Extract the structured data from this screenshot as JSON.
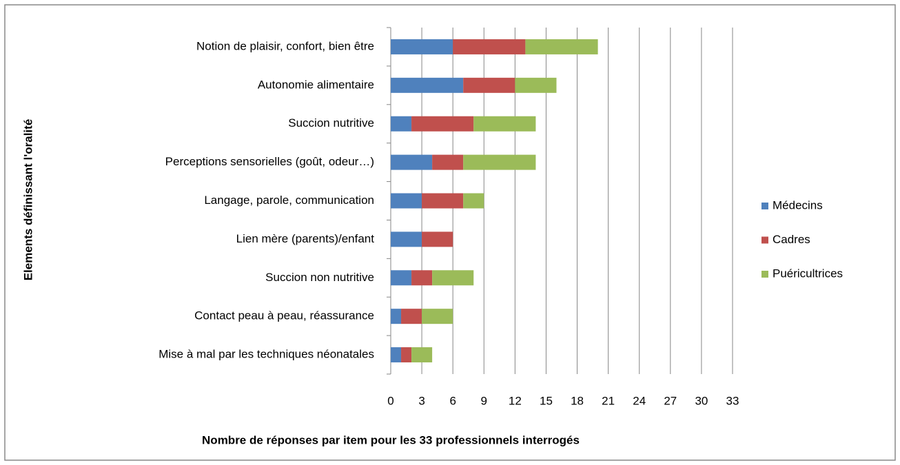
{
  "chart_data": {
    "type": "stacked-bar-horizontal",
    "xlabel": "Nombre de réponses par item pour les 33 professionnels interrogés",
    "ylabel": "Elements définissant l'oralité",
    "categories": [
      "Notion de plaisir, confort, bien être",
      "Autonomie alimentaire",
      "Succion nutritive",
      "Perceptions sensorielles (goût, odeur…)",
      "Langage, parole, communication",
      "Lien mère (parents)/enfant",
      "Succion non nutritive",
      "Contact peau à peau, réassurance",
      "Mise à mal par les techniques néonatales"
    ],
    "series": [
      {
        "name": "Médecins",
        "color": "#4f81bd",
        "values": [
          6,
          7,
          2,
          4,
          3,
          3,
          2,
          1,
          1
        ]
      },
      {
        "name": "Cadres",
        "color": "#c0504d",
        "values": [
          7,
          5,
          6,
          3,
          4,
          3,
          2,
          2,
          1
        ]
      },
      {
        "name": "Puéricultrices",
        "color": "#9bbb59",
        "values": [
          7,
          4,
          6,
          7,
          2,
          0,
          4,
          3,
          2
        ]
      }
    ],
    "xlim": [
      0,
      33
    ],
    "xticks": [
      0,
      3,
      6,
      9,
      12,
      15,
      18,
      21,
      24,
      27,
      30,
      33
    ],
    "grid": true,
    "legend": "right"
  }
}
